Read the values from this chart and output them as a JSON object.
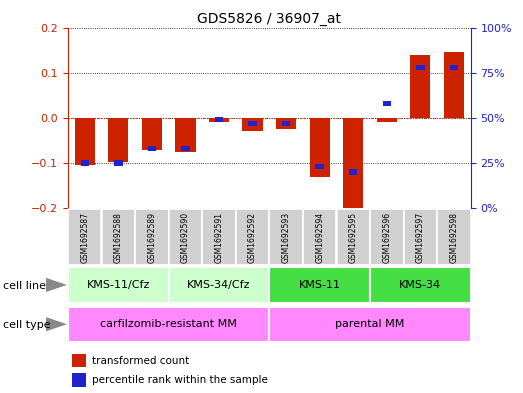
{
  "title": "GDS5826 / 36907_at",
  "samples": [
    "GSM1692587",
    "GSM1692588",
    "GSM1692589",
    "GSM1692590",
    "GSM1692591",
    "GSM1692592",
    "GSM1692593",
    "GSM1692594",
    "GSM1692595",
    "GSM1692596",
    "GSM1692597",
    "GSM1692598"
  ],
  "red_values": [
    -0.105,
    -0.098,
    -0.07,
    -0.075,
    -0.008,
    -0.03,
    -0.025,
    -0.13,
    -0.2,
    -0.01,
    0.14,
    0.145
  ],
  "blue_values_pct": [
    25,
    25,
    33,
    33,
    49,
    47,
    47,
    23,
    20,
    58,
    78,
    78
  ],
  "ylim_left": [
    -0.2,
    0.2
  ],
  "ylim_right": [
    0,
    100
  ],
  "yticks_left": [
    -0.2,
    -0.1,
    0.0,
    0.1,
    0.2
  ],
  "yticks_right": [
    0,
    25,
    50,
    75,
    100
  ],
  "ytick_labels_right": [
    "0%",
    "25%",
    "50%",
    "75%",
    "100%"
  ],
  "red_color": "#cc2200",
  "blue_color": "#2222cc",
  "cell_line_groups": [
    {
      "label": "KMS-11/Cfz",
      "start": 0,
      "end": 3,
      "color": "#ccffcc"
    },
    {
      "label": "KMS-34/Cfz",
      "start": 3,
      "end": 6,
      "color": "#ccffcc"
    },
    {
      "label": "KMS-11",
      "start": 6,
      "end": 9,
      "color": "#44dd44"
    },
    {
      "label": "KMS-34",
      "start": 9,
      "end": 12,
      "color": "#44dd44"
    }
  ],
  "cell_type_groups": [
    {
      "label": "carfilzomib-resistant MM",
      "start": 0,
      "end": 6,
      "color": "#ff88ff"
    },
    {
      "label": "parental MM",
      "start": 6,
      "end": 12,
      "color": "#ff88ff"
    }
  ],
  "legend_red": "transformed count",
  "legend_blue": "percentile rank within the sample",
  "bar_width": 0.6,
  "blue_bar_width": 0.25
}
